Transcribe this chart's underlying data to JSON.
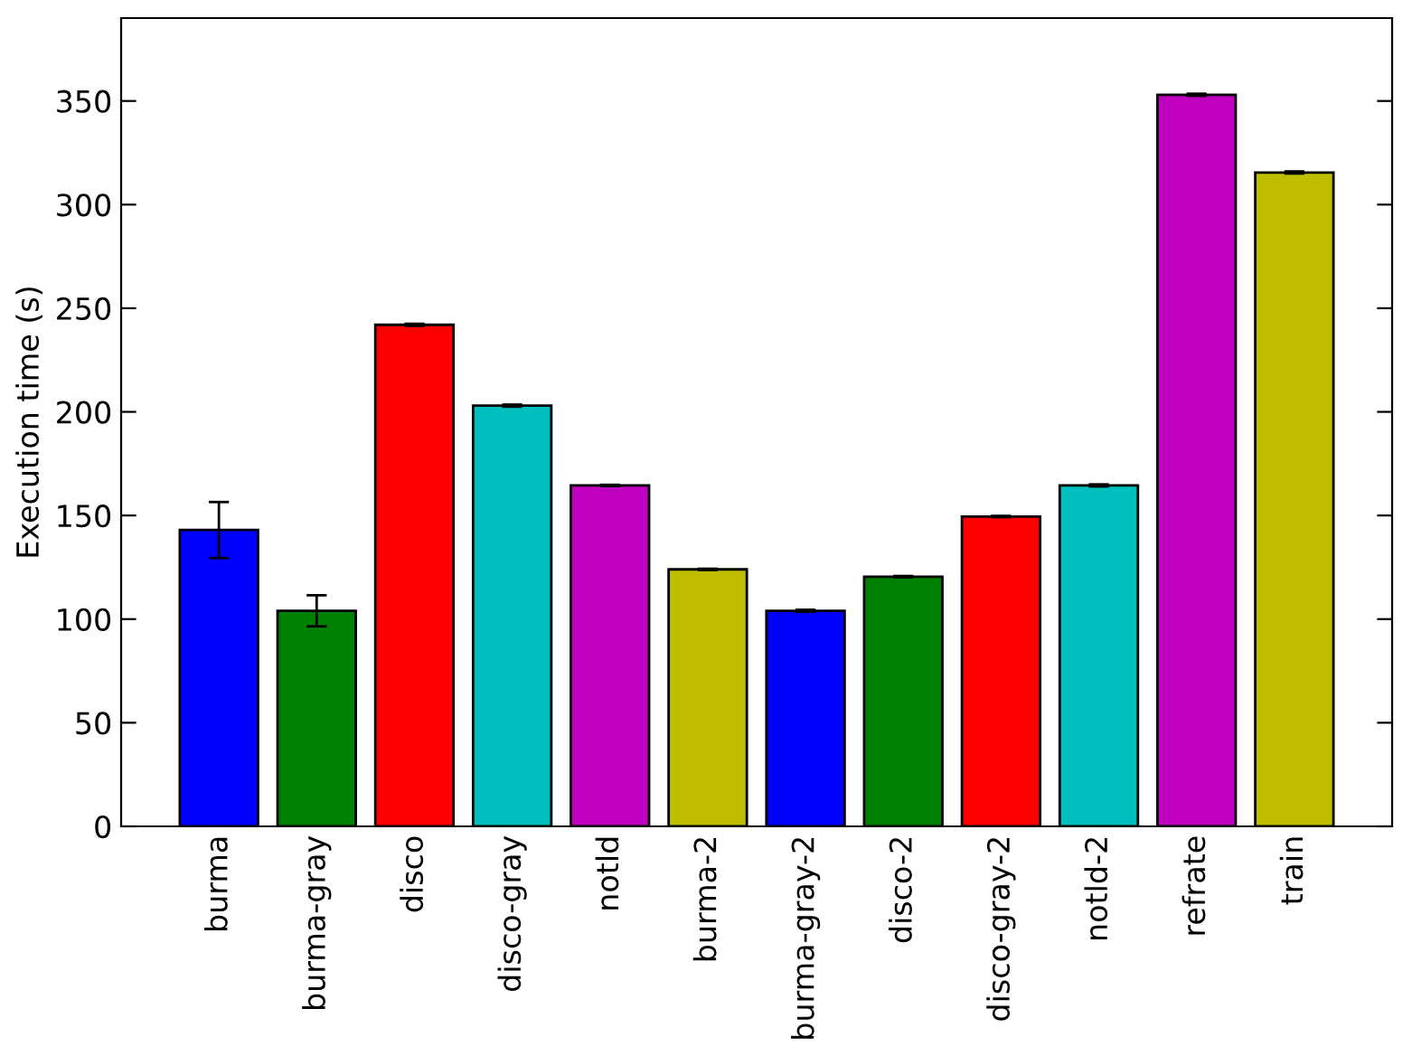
{
  "chart_data": {
    "type": "bar",
    "ylabel": "Execution time (s)",
    "categories": [
      "burma",
      "burma-gray",
      "disco",
      "disco-gray",
      "notld",
      "burma-2",
      "burma-gray-2",
      "disco-2",
      "disco-gray-2",
      "notld-2",
      "refrate",
      "train"
    ],
    "values": [
      143,
      104,
      242,
      203,
      164.5,
      124,
      104,
      120.5,
      149.5,
      164.5,
      353,
      315.5
    ],
    "errors": [
      13.5,
      7.5,
      0.5,
      0.5,
      0.3,
      0.3,
      0.5,
      0.3,
      0.3,
      0.5,
      0.5,
      0.5
    ],
    "colors": [
      "#0000ff",
      "#008000",
      "#ff0000",
      "#00bfbf",
      "#bf00bf",
      "#bfbf00",
      "#0000ff",
      "#008000",
      "#ff0000",
      "#00bfbf",
      "#bf00bf",
      "#bfbf00"
    ],
    "ylim": [
      0,
      390
    ],
    "yticks": [
      0,
      50,
      100,
      150,
      200,
      250,
      300,
      350
    ],
    "grid": false,
    "legend": false
  }
}
